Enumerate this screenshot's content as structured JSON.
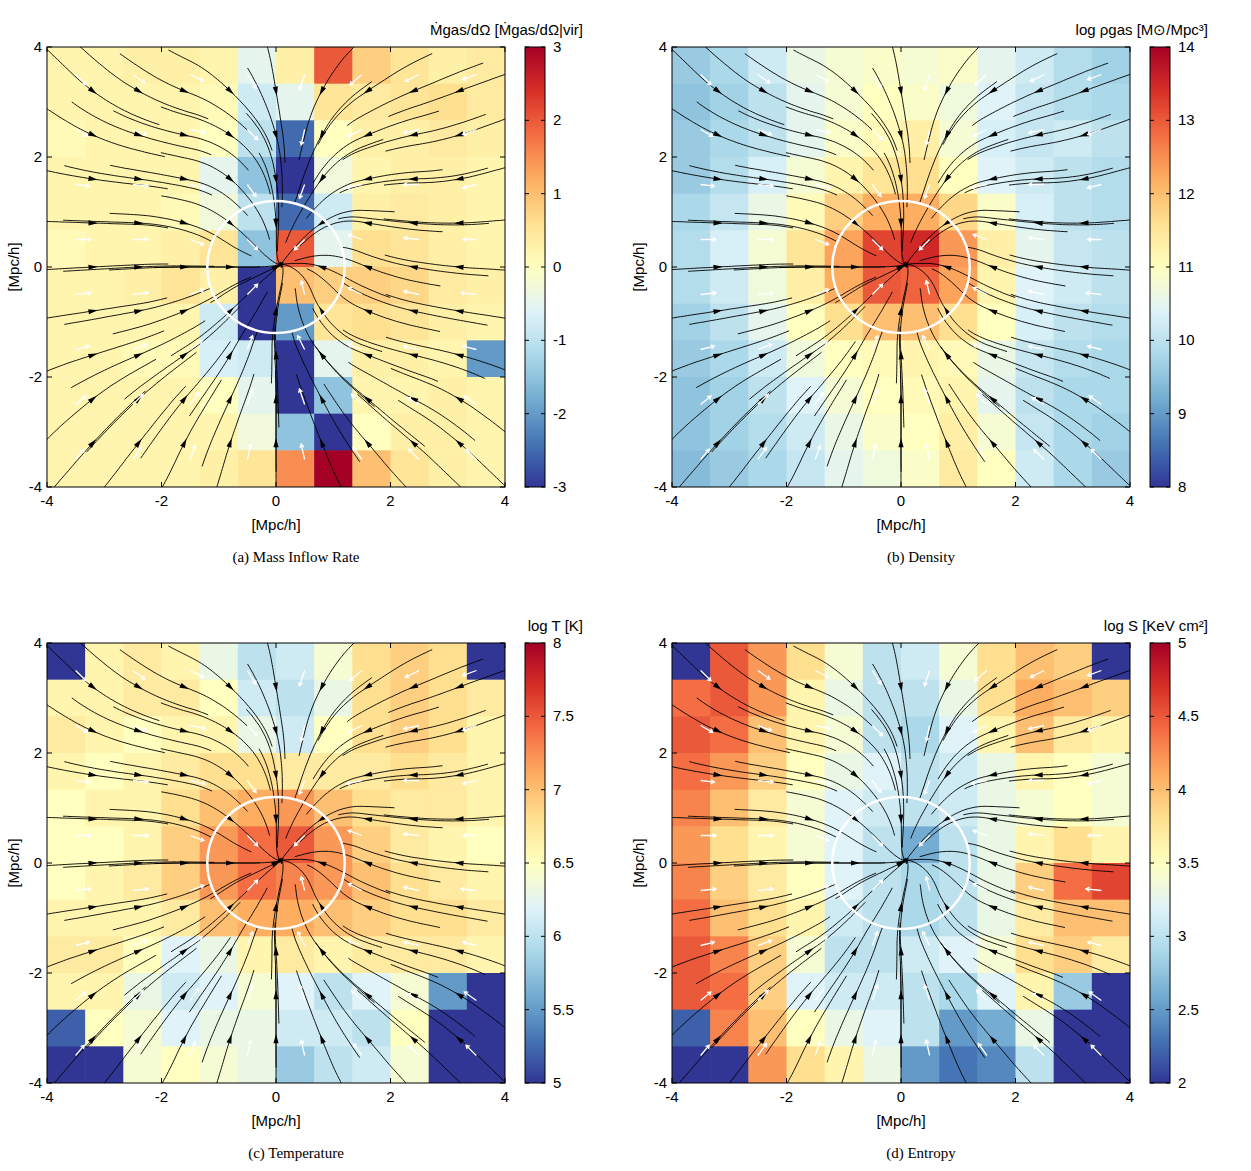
{
  "chart_data": [
    {
      "type": "heatmap",
      "caption": "(a) Mass Inflow Rate",
      "colorbar_label": "Ṁgas/dΩ [Ṁgas/dΩ|vir]",
      "x_label": "[Mpc/h]",
      "y_label": "[Mpc/h]",
      "xlim": [
        -4,
        4
      ],
      "ylim": [
        -4,
        4
      ],
      "xticks": [
        -4,
        -2,
        0,
        2,
        4
      ],
      "yticks": [
        -4,
        -2,
        0,
        2,
        4
      ],
      "colorbar_range": [
        -3,
        3
      ],
      "colorbar_ticks": [
        -3,
        -2,
        -1,
        0,
        1,
        2,
        3
      ],
      "virial_radius": 1.2,
      "cells": [
        [
          0.2,
          0.2,
          0.3,
          0.3,
          0.2,
          -0.5,
          0.3,
          2,
          0.8,
          0.5,
          0.3,
          0.4
        ],
        [
          0.2,
          0.2,
          0.2,
          0.2,
          0.1,
          -0.8,
          -0.5,
          0.5,
          0.4,
          0.5,
          0.6,
          0.4
        ],
        [
          0.1,
          0.2,
          0.2,
          0.2,
          0,
          -1,
          -2.5,
          0,
          0.3,
          0.3,
          0.4,
          0.3
        ],
        [
          0.2,
          0.2,
          0.2,
          0.2,
          -0.5,
          -1.5,
          -3,
          -0.3,
          0.2,
          0.3,
          0.3,
          0.2
        ],
        [
          0.2,
          0.2,
          0.2,
          0.1,
          -0.3,
          -1,
          -2.5,
          -0.8,
          0.3,
          0.4,
          0.3,
          0.2
        ],
        [
          0.1,
          0.2,
          0.2,
          0.3,
          0.5,
          -1.5,
          2,
          -0.5,
          0.6,
          0.5,
          0.3,
          0.2
        ],
        [
          0.2,
          0.2,
          0.3,
          0.5,
          0.3,
          -3,
          1,
          0.8,
          0.8,
          0.7,
          0.4,
          0.3
        ],
        [
          0.2,
          0.2,
          0.2,
          0.2,
          -0.8,
          -3,
          -2,
          0.5,
          0.6,
          0.5,
          0.3,
          0.2
        ],
        [
          0.2,
          0.2,
          0.1,
          0.1,
          -0.7,
          -0.8,
          -3,
          -0.5,
          0.3,
          0.3,
          0.2,
          -2
        ],
        [
          0.2,
          0.2,
          0.2,
          0.2,
          0,
          -0.5,
          -3,
          -1.5,
          0.2,
          0.2,
          0.3,
          0.2
        ],
        [
          0.2,
          0.2,
          0.2,
          0.2,
          0.2,
          -0.3,
          -1.5,
          -3,
          0,
          0.3,
          0.3,
          0.2
        ],
        [
          0.2,
          0.2,
          0.2,
          0.2,
          0.3,
          0.5,
          1.5,
          3,
          1,
          0.5,
          0.3,
          0.2
        ]
      ]
    },
    {
      "type": "heatmap",
      "caption": "(b) Density",
      "colorbar_label": "log ρgas [M⊙/Mpc³]",
      "x_label": "[Mpc/h]",
      "y_label": "[Mpc/h]",
      "xlim": [
        -4,
        4
      ],
      "ylim": [
        -4,
        4
      ],
      "xticks": [
        -4,
        -2,
        0,
        2,
        4
      ],
      "yticks": [
        -4,
        -2,
        0,
        2,
        4
      ],
      "colorbar_range": [
        8,
        14
      ],
      "colorbar_ticks": [
        8,
        9,
        10,
        11,
        12,
        13,
        14
      ],
      "virial_radius": 1.2,
      "cells": [
        [
          9.6,
          9.8,
          10.2,
          10.6,
          10.8,
          10.9,
          10.8,
          10.9,
          10.5,
          10.2,
          9.9,
          9.7
        ],
        [
          9.5,
          9.7,
          10,
          10.5,
          10.8,
          11,
          10.9,
          10.7,
          10.4,
          10.1,
          9.9,
          9.8
        ],
        [
          9.6,
          9.8,
          10,
          10.5,
          10.9,
          11.1,
          11.3,
          10.8,
          10.3,
          10.1,
          10.2,
          10
        ],
        [
          9.6,
          9.9,
          10.3,
          10.8,
          11.2,
          11.5,
          11.6,
          11,
          10.4,
          10.2,
          10,
          9.9
        ],
        [
          9.8,
          10.1,
          10.6,
          11.1,
          11.8,
          12.2,
          12.2,
          11.7,
          10.9,
          10.3,
          10,
          9.9
        ],
        [
          9.9,
          10.3,
          10.8,
          11.5,
          12.3,
          13.2,
          13.5,
          12.4,
          11.3,
          10.5,
          10.1,
          10
        ],
        [
          9.9,
          10.2,
          10.7,
          11.3,
          12.2,
          13,
          12.9,
          12.3,
          11.2,
          10.4,
          10.2,
          10
        ],
        [
          9.7,
          10,
          10.5,
          11,
          11.6,
          12,
          12,
          11.6,
          11,
          10.3,
          10,
          9.9
        ],
        [
          9.6,
          9.8,
          10.2,
          10.7,
          11,
          11.1,
          11.2,
          11.1,
          10.6,
          10.1,
          9.9,
          9.8
        ],
        [
          9.5,
          9.7,
          10,
          10.4,
          10.8,
          11,
          11.1,
          11.2,
          10.5,
          10,
          9.8,
          9.8
        ],
        [
          9.5,
          9.7,
          9.9,
          10.2,
          10.6,
          10.9,
          11,
          11.3,
          10.8,
          10.1,
          9.8,
          9.7
        ],
        [
          9.4,
          9.6,
          9.8,
          10.1,
          10.5,
          10.7,
          10.9,
          11.4,
          11,
          10.2,
          9.8,
          9.6
        ]
      ]
    },
    {
      "type": "heatmap",
      "caption": "(c) Temperature",
      "colorbar_label": "log T [K]",
      "x_label": "[Mpc/h]",
      "y_label": "[Mpc/h]",
      "xlim": [
        -4,
        4
      ],
      "ylim": [
        -4,
        4
      ],
      "xticks": [
        -4,
        -2,
        0,
        2,
        4
      ],
      "yticks": [
        -4,
        -2,
        0,
        2,
        4
      ],
      "colorbar_range": [
        5,
        8
      ],
      "colorbar_ticks": [
        5,
        5.5,
        6,
        6.5,
        7,
        7.5,
        8
      ],
      "virial_radius": 1.2,
      "cells": [
        [
          5,
          6.6,
          6.7,
          6.6,
          6.3,
          6,
          6.1,
          6.4,
          6.8,
          6.9,
          6.8,
          5
        ],
        [
          6.6,
          6.6,
          6.7,
          6.7,
          6.5,
          6.1,
          6,
          6.3,
          6.8,
          6.9,
          6.8,
          6.7
        ],
        [
          6.7,
          6.6,
          6.5,
          6.6,
          6.6,
          6.3,
          6.1,
          6.5,
          6.8,
          6.9,
          6.8,
          6.6
        ],
        [
          6.6,
          6.5,
          6.6,
          6.7,
          6.8,
          6.8,
          6.7,
          6.7,
          6.7,
          6.8,
          6.7,
          6.6
        ],
        [
          6.5,
          6.6,
          6.6,
          6.8,
          7,
          7.1,
          7.2,
          7,
          6.8,
          6.7,
          6.7,
          6.6
        ],
        [
          6.5,
          6.5,
          6.6,
          6.9,
          7.2,
          7.4,
          7.5,
          7.2,
          6.9,
          6.7,
          6.6,
          6.5
        ],
        [
          6.5,
          6.6,
          6.7,
          6.9,
          7.2,
          7.4,
          7.3,
          7.2,
          7,
          6.8,
          6.7,
          6.6
        ],
        [
          6.6,
          6.6,
          6.6,
          6.7,
          7,
          7.1,
          7.1,
          7,
          6.9,
          6.8,
          6.8,
          6.7
        ],
        [
          6.7,
          6.7,
          6.5,
          6.2,
          6.3,
          6.6,
          6.7,
          6.6,
          6.7,
          6.7,
          6.7,
          6.6
        ],
        [
          6.6,
          6.6,
          6.3,
          6.1,
          6.2,
          6.4,
          6.2,
          6,
          6.2,
          6.4,
          5.5,
          5
        ],
        [
          5.2,
          6.5,
          6.4,
          6.2,
          6.3,
          6.3,
          6.1,
          6.1,
          6,
          6.5,
          5,
          5
        ],
        [
          5,
          5,
          6.4,
          6.5,
          6.4,
          6.3,
          5.8,
          6,
          6.1,
          6.4,
          5,
          5
        ]
      ]
    },
    {
      "type": "heatmap",
      "caption": "(d) Entropy",
      "colorbar_label": "log S [KeV cm²]",
      "x_label": "[Mpc/h]",
      "y_label": "[Mpc/h]",
      "xlim": [
        -4,
        4
      ],
      "ylim": [
        -4,
        4
      ],
      "xticks": [
        -4,
        -2,
        0,
        2,
        4
      ],
      "yticks": [
        -4,
        -2,
        0,
        2,
        4
      ],
      "colorbar_range": [
        2,
        5
      ],
      "colorbar_ticks": [
        2,
        2.5,
        3,
        3.5,
        4,
        4.5,
        5
      ],
      "virial_radius": 1.2,
      "cells": [
        [
          2,
          4.5,
          4.2,
          3.8,
          3.4,
          3,
          3.1,
          3.4,
          3.8,
          4,
          3.9,
          2
        ],
        [
          4.4,
          4.5,
          4.2,
          3.6,
          3.3,
          3,
          3,
          3.3,
          3.8,
          4.1,
          4,
          3.9
        ],
        [
          4.5,
          4.4,
          4,
          3.6,
          3.4,
          3,
          2.9,
          3.2,
          3.6,
          4,
          3.7,
          3.6
        ],
        [
          4.4,
          4.2,
          3.9,
          3.5,
          3.3,
          3.2,
          3,
          3.1,
          3.3,
          3.6,
          3.5,
          3.4
        ],
        [
          4.3,
          4,
          3.7,
          3.4,
          3.2,
          3.1,
          3,
          3.1,
          3.3,
          3.4,
          3.5,
          3.4
        ],
        [
          4.2,
          3.8,
          3.6,
          3.4,
          3.2,
          3,
          2.6,
          3,
          3.3,
          3.6,
          3.8,
          3.6
        ],
        [
          4.3,
          3.9,
          3.7,
          3.5,
          3.2,
          3,
          2.9,
          3,
          3.3,
          3.9,
          4.4,
          4.6
        ],
        [
          4.4,
          4,
          3.8,
          3.6,
          3.1,
          3,
          2.9,
          3,
          3.3,
          3.7,
          4,
          4
        ],
        [
          4.5,
          4.3,
          3.9,
          3.4,
          3,
          3,
          3.1,
          3.2,
          3.4,
          3.8,
          3.9,
          3.7
        ],
        [
          4.5,
          4.4,
          3.9,
          3.2,
          3.1,
          3.1,
          3,
          2.9,
          3.2,
          3.6,
          2.8,
          2
        ],
        [
          2.2,
          4.3,
          4,
          3.5,
          3.3,
          3.2,
          3,
          2.5,
          2.6,
          3.3,
          2,
          2
        ],
        [
          2,
          2,
          4.2,
          3.8,
          3.6,
          3.3,
          2.5,
          2.3,
          2.4,
          3,
          2,
          2
        ]
      ]
    }
  ],
  "velocity_field": {
    "x": [
      -3.5,
      -2.5,
      -1.5,
      -0.5,
      0.5,
      1.5,
      2.5,
      3.5
    ],
    "y": [
      3.5,
      2.5,
      1.5,
      0.5,
      -0.5,
      -1.5,
      -2.5,
      -3.5
    ],
    "vectors": [
      [
        [
          0.6,
          -0.6
        ],
        [
          0.7,
          -0.5
        ],
        [
          0.8,
          -0.4
        ],
        [
          0.5,
          -0.8
        ],
        [
          -0.3,
          -0.9
        ],
        [
          -0.7,
          -0.6
        ],
        [
          -0.8,
          -0.4
        ],
        [
          -0.8,
          -0.3
        ]
      ],
      [
        [
          0.7,
          -0.4
        ],
        [
          0.8,
          -0.3
        ],
        [
          0.9,
          -0.2
        ],
        [
          0.6,
          -0.6
        ],
        [
          -0.2,
          -0.9
        ],
        [
          -0.8,
          -0.4
        ],
        [
          -0.9,
          -0.2
        ],
        [
          -0.8,
          -0.3
        ]
      ],
      [
        [
          0.8,
          -0.1
        ],
        [
          0.9,
          -0.1
        ],
        [
          0.9,
          -0.2
        ],
        [
          0.5,
          -0.7
        ],
        [
          -0.3,
          -0.8
        ],
        [
          -0.9,
          -0.2
        ],
        [
          -0.9,
          0
        ],
        [
          -0.8,
          -0.2
        ]
      ],
      [
        [
          0.9,
          0
        ],
        [
          0.9,
          0
        ],
        [
          0.8,
          -0.3
        ],
        [
          0.6,
          -0.6
        ],
        [
          -0.6,
          -0.6
        ],
        [
          -0.8,
          0.3
        ],
        [
          -0.9,
          0.1
        ],
        [
          -0.8,
          0
        ]
      ],
      [
        [
          0.9,
          0.1
        ],
        [
          0.9,
          0.1
        ],
        [
          0.8,
          0.3
        ],
        [
          0.6,
          0.6
        ],
        [
          -0.2,
          0.8
        ],
        [
          -0.8,
          0.4
        ],
        [
          -0.9,
          0.2
        ],
        [
          -0.9,
          0.1
        ]
      ],
      [
        [
          0.8,
          0.2
        ],
        [
          0.8,
          0.3
        ],
        [
          0.7,
          0.5
        ],
        [
          0.3,
          0.8
        ],
        [
          -0.4,
          0.8
        ],
        [
          -0.8,
          0.3
        ],
        [
          -0.9,
          0.2
        ],
        [
          -0.8,
          0.2
        ]
      ],
      [
        [
          0.6,
          0.5
        ],
        [
          0.6,
          0.6
        ],
        [
          0.5,
          0.7
        ],
        [
          0.3,
          0.9
        ],
        [
          -0.3,
          0.9
        ],
        [
          -0.6,
          0.6
        ],
        [
          -0.7,
          0.4
        ],
        [
          -0.7,
          0.5
        ]
      ],
      [
        [
          0.5,
          0.6
        ],
        [
          0.5,
          0.7
        ],
        [
          0.3,
          0.8
        ],
        [
          0.2,
          0.9
        ],
        [
          -0.2,
          0.9
        ],
        [
          -0.5,
          0.7
        ],
        [
          -0.6,
          0.6
        ],
        [
          -0.6,
          0.6
        ]
      ]
    ]
  }
}
